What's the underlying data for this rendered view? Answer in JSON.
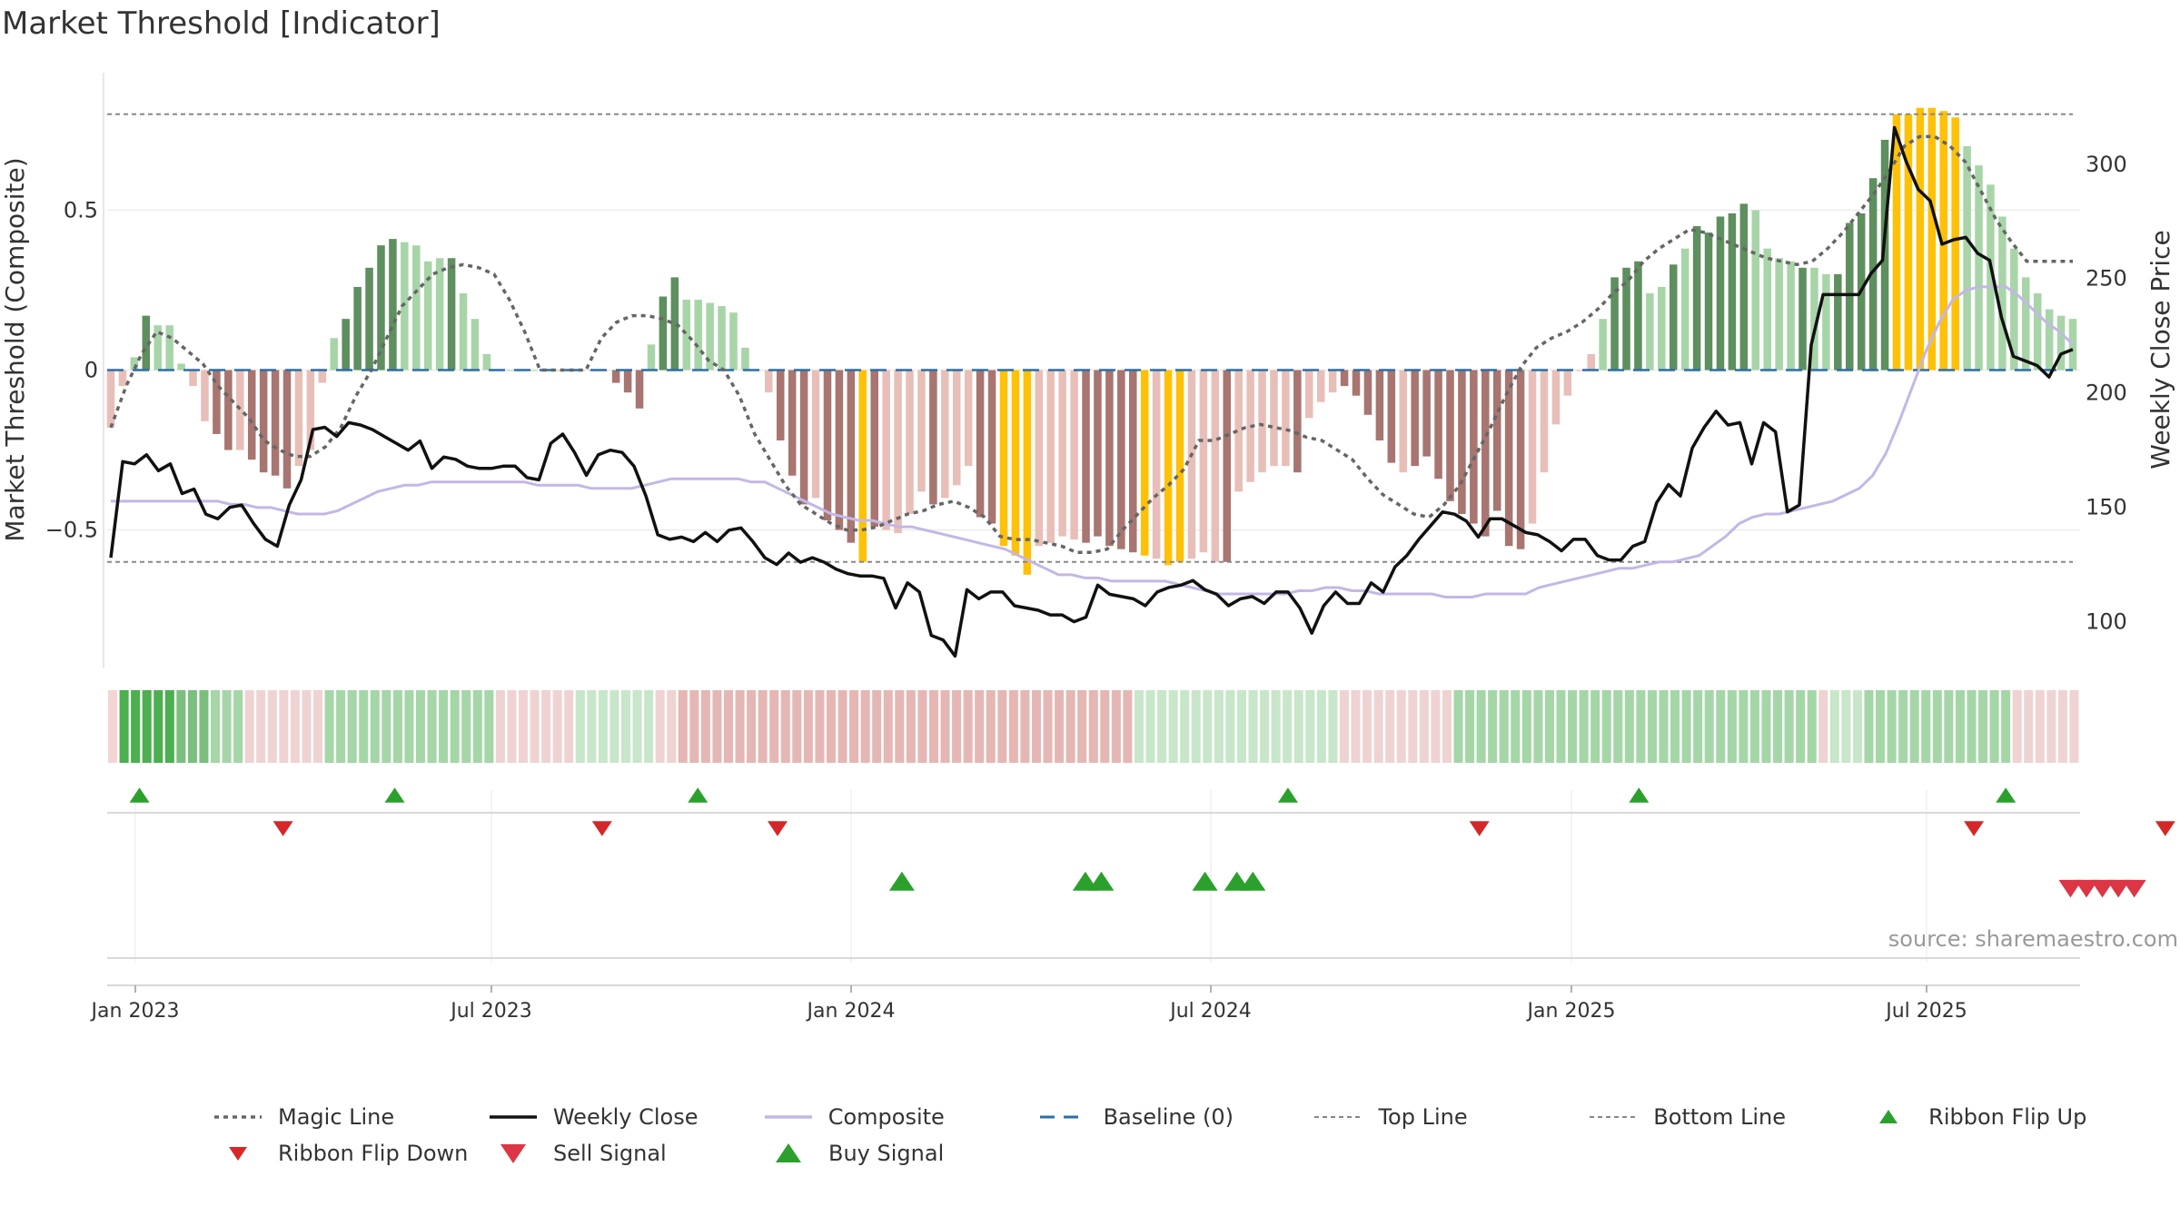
{
  "title": "Market Threshold [Indicator]",
  "source": "source: sharemaestro.com",
  "colors": {
    "dark_green": "#5e8f5e",
    "light_green": "#a8d5a8",
    "dark_red": "#a87570",
    "light_red": "#e8bfb8",
    "gold": "#ffc107",
    "weekly_close": "#111111",
    "composite": "#c3b7e6",
    "magic": "#666666",
    "baseline": "#2c6fa5",
    "threshold": "#888888",
    "flip_up": "#2ca02c",
    "flip_down": "#d62728",
    "buy": "#2ca02c",
    "sell": "#dc3545"
  },
  "chart_data": {
    "type": "bar",
    "title": "Market Threshold [Indicator]",
    "ylabel": "Market Threshold (Composite)",
    "ylabel_right": "Weekly Close Price",
    "ylim": [
      -0.93,
      0.93
    ],
    "ylim_right": [
      80,
      340
    ],
    "y_ticks": [
      0.5,
      0,
      -0.5
    ],
    "y_tick_labels": [
      "0.5",
      "0",
      "−0.5"
    ],
    "y_ticks_right": [
      100,
      150,
      200,
      250,
      300
    ],
    "y_tick_labels_right": [
      "100",
      "150",
      "200",
      "250",
      "300"
    ],
    "x_ticks": [
      "Jan 2023",
      "Jul 2023",
      "Jan 2024",
      "Jul 2024",
      "Jan 2025",
      "Jul 2025"
    ],
    "top_line": 0.8,
    "bottom_line": -0.6,
    "grid": true,
    "legend_position": "bottom",
    "bar_values": [
      -0.18,
      -0.05,
      0.04,
      0.17,
      0.14,
      0.14,
      0.02,
      -0.05,
      -0.16,
      -0.2,
      -0.25,
      -0.25,
      -0.28,
      -0.32,
      -0.33,
      -0.37,
      -0.3,
      -0.25,
      -0.04,
      0.1,
      0.16,
      0.26,
      0.32,
      0.39,
      0.41,
      0.4,
      0.39,
      0.34,
      0.35,
      0.35,
      0.24,
      0.16,
      0.05,
      0.0,
      0.0,
      0.0,
      0.0,
      0.0,
      0.0,
      0.0,
      0.0,
      0.0,
      0.0,
      -0.04,
      -0.07,
      -0.12,
      0.08,
      0.23,
      0.29,
      0.22,
      0.22,
      0.21,
      0.2,
      0.18,
      0.07,
      0.0,
      -0.07,
      -0.22,
      -0.33,
      -0.42,
      -0.4,
      -0.47,
      -0.5,
      -0.54,
      -0.6,
      -0.49,
      -0.5,
      -0.51,
      -0.45,
      -0.38,
      -0.42,
      -0.4,
      -0.36,
      -0.3,
      -0.46,
      -0.48,
      -0.55,
      -0.58,
      -0.64,
      -0.55,
      -0.54,
      -0.52,
      -0.53,
      -0.54,
      -0.52,
      -0.55,
      -0.56,
      -0.57,
      -0.58,
      -0.59,
      -0.61,
      -0.6,
      -0.59,
      -0.57,
      -0.6,
      -0.6,
      -0.38,
      -0.35,
      -0.32,
      -0.3,
      -0.3,
      -0.32,
      -0.15,
      -0.1,
      -0.07,
      -0.05,
      -0.08,
      -0.14,
      -0.22,
      -0.29,
      -0.32,
      -0.3,
      -0.27,
      -0.34,
      -0.41,
      -0.45,
      -0.48,
      -0.52,
      -0.44,
      -0.55,
      -0.56,
      -0.48,
      -0.32,
      -0.17,
      -0.08,
      0.0,
      0.05,
      0.16,
      0.29,
      0.32,
      0.34,
      0.24,
      0.26,
      0.33,
      0.38,
      0.45,
      0.43,
      0.48,
      0.49,
      0.52,
      0.5,
      0.38,
      0.35,
      0.34,
      0.32,
      0.32,
      0.3,
      0.3,
      0.46,
      0.49,
      0.6,
      0.72,
      0.8,
      0.8,
      0.82,
      0.82,
      0.81,
      0.79,
      0.7,
      0.64,
      0.58,
      0.48,
      0.38,
      0.29,
      0.24,
      0.19,
      0.17,
      0.16
    ],
    "bar_colors": [
      "lr",
      "lr",
      "lg",
      "dg",
      "lg",
      "lg",
      "lg",
      "lr",
      "lr",
      "dr",
      "dr",
      "lr",
      "dr",
      "dr",
      "dr",
      "dr",
      "lr",
      "lr",
      "lr",
      "lg",
      "dg",
      "dg",
      "dg",
      "dg",
      "dg",
      "lg",
      "lg",
      "lg",
      "lg",
      "dg",
      "lg",
      "lg",
      "lg",
      "lg",
      "lg",
      "lg",
      "lg",
      "lg",
      "lg",
      "lg",
      "lg",
      "lg",
      "lr",
      "dr",
      "dr",
      "dr",
      "lg",
      "dg",
      "dg",
      "lg",
      "lg",
      "lg",
      "lg",
      "lg",
      "lg",
      "lr",
      "lr",
      "dr",
      "dr",
      "dr",
      "lr",
      "dr",
      "dr",
      "dr",
      "gold",
      "dr",
      "lr",
      "lr",
      "lr",
      "lr",
      "dr",
      "lr",
      "lr",
      "lr",
      "dr",
      "dr",
      "gold",
      "gold",
      "gold",
      "lr",
      "lr",
      "lr",
      "lr",
      "dr",
      "dr",
      "dr",
      "dr",
      "dr",
      "gold",
      "lr",
      "gold",
      "gold",
      "lr",
      "lr",
      "lr",
      "dr",
      "lr",
      "lr",
      "lr",
      "lr",
      "lr",
      "dr",
      "lr",
      "lr",
      "lr",
      "dr",
      "dr",
      "dr",
      "dr",
      "dr",
      "lr",
      "dr",
      "dr",
      "dr",
      "dr",
      "dr",
      "dr",
      "dr",
      "dr",
      "dr",
      "dr",
      "lr",
      "lr",
      "lr",
      "lr",
      "lr",
      "lr",
      "lg",
      "dg",
      "dg",
      "dg",
      "lg",
      "lg",
      "dg",
      "lg",
      "dg",
      "dg",
      "dg",
      "dg",
      "dg",
      "lg",
      "lg",
      "lg",
      "lg",
      "dg",
      "lg",
      "lg",
      "dg",
      "dg",
      "dg",
      "dg",
      "dg",
      "gold",
      "gold",
      "gold",
      "gold",
      "gold",
      "gold",
      "lg",
      "lg",
      "lg",
      "lg",
      "lg",
      "lg",
      "lg",
      "lg",
      "lg",
      "lg"
    ],
    "weekly_close": [
      128,
      170,
      169,
      173,
      166,
      169,
      156,
      158,
      147,
      145,
      150,
      151,
      143,
      136,
      133,
      151,
      162,
      184,
      185,
      181,
      187,
      186,
      184,
      181,
      178,
      175,
      179,
      167,
      172,
      171,
      168,
      167,
      167,
      168,
      168,
      163,
      162,
      178,
      182,
      174,
      164,
      173,
      175,
      174,
      168,
      155,
      138,
      136,
      137,
      135,
      139,
      135,
      140,
      141,
      135,
      128,
      125,
      130,
      126,
      128,
      126,
      123,
      121,
      120,
      120,
      119,
      106,
      117,
      113,
      94,
      92,
      85,
      114,
      110,
      113,
      113,
      107,
      106,
      105,
      103,
      103,
      100,
      102,
      116,
      112,
      111,
      110,
      107,
      113,
      115,
      116,
      118,
      114,
      112,
      107,
      110,
      111,
      108,
      113,
      113,
      106,
      95,
      107,
      113,
      108,
      108,
      117,
      113,
      124,
      129,
      136,
      142,
      148,
      147,
      144,
      137,
      145,
      145,
      142,
      139,
      138,
      135,
      131,
      136,
      136,
      129,
      127,
      127,
      133,
      135,
      152,
      160,
      155,
      176,
      185,
      192,
      186,
      187,
      169,
      187,
      183,
      148,
      151,
      221,
      243,
      243,
      243,
      243,
      252,
      258,
      316,
      301,
      289,
      284,
      265,
      267,
      268,
      261,
      258,
      233,
      216,
      214,
      212,
      207,
      217,
      219
    ],
    "composite_line": [
      -0.41,
      -0.41,
      -0.41,
      -0.41,
      -0.41,
      -0.41,
      -0.41,
      -0.41,
      -0.41,
      -0.42,
      -0.42,
      -0.43,
      -0.43,
      -0.44,
      -0.45,
      -0.45,
      -0.45,
      -0.44,
      -0.42,
      -0.4,
      -0.38,
      -0.37,
      -0.36,
      -0.36,
      -0.35,
      -0.35,
      -0.35,
      -0.35,
      -0.35,
      -0.35,
      -0.35,
      -0.35,
      -0.36,
      -0.36,
      -0.36,
      -0.36,
      -0.37,
      -0.37,
      -0.37,
      -0.37,
      -0.36,
      -0.35,
      -0.34,
      -0.34,
      -0.34,
      -0.34,
      -0.34,
      -0.34,
      -0.35,
      -0.35,
      -0.37,
      -0.39,
      -0.41,
      -0.43,
      -0.45,
      -0.46,
      -0.47,
      -0.47,
      -0.48,
      -0.49,
      -0.49,
      -0.5,
      -0.51,
      -0.52,
      -0.53,
      -0.54,
      -0.55,
      -0.56,
      -0.58,
      -0.6,
      -0.62,
      -0.64,
      -0.64,
      -0.65,
      -0.65,
      -0.66,
      -0.66,
      -0.66,
      -0.66,
      -0.66,
      -0.67,
      -0.68,
      -0.69,
      -0.7,
      -0.7,
      -0.7,
      -0.7,
      -0.7,
      -0.7,
      -0.69,
      -0.69,
      -0.68,
      -0.68,
      -0.69,
      -0.69,
      -0.7,
      -0.7,
      -0.7,
      -0.7,
      -0.7,
      -0.71,
      -0.71,
      -0.71,
      -0.7,
      -0.7,
      -0.7,
      -0.7,
      -0.68,
      -0.67,
      -0.66,
      -0.65,
      -0.64,
      -0.63,
      -0.62,
      -0.62,
      -0.61,
      -0.6,
      -0.6,
      -0.59,
      -0.58,
      -0.55,
      -0.52,
      -0.48,
      -0.46,
      -0.45,
      -0.45,
      -0.44,
      -0.43,
      -0.42,
      -0.41,
      -0.39,
      -0.37,
      -0.33,
      -0.26,
      -0.16,
      -0.05,
      0.06,
      0.15,
      0.22,
      0.25,
      0.26,
      0.26,
      0.26,
      0.23,
      0.19,
      0.15,
      0.12,
      0.08
    ],
    "magic_line": [
      -0.18,
      -0.05,
      0.05,
      0.12,
      0.1,
      0.06,
      0.02,
      -0.05,
      -0.1,
      -0.15,
      -0.22,
      -0.25,
      -0.27,
      -0.27,
      -0.24,
      -0.18,
      -0.08,
      0.0,
      0.1,
      0.2,
      0.25,
      0.3,
      0.32,
      0.33,
      0.32,
      0.3,
      0.22,
      0.12,
      0.0,
      0.0,
      0.0,
      0.0,
      0.1,
      0.15,
      0.17,
      0.17,
      0.16,
      0.14,
      0.09,
      0.03,
      0.0,
      -0.08,
      -0.2,
      -0.28,
      -0.36,
      -0.42,
      -0.45,
      -0.48,
      -0.5,
      -0.5,
      -0.49,
      -0.47,
      -0.45,
      -0.44,
      -0.42,
      -0.41,
      -0.43,
      -0.46,
      -0.52,
      -0.53,
      -0.53,
      -0.54,
      -0.55,
      -0.57,
      -0.57,
      -0.56,
      -0.5,
      -0.45,
      -0.4,
      -0.36,
      -0.31,
      -0.22,
      -0.22,
      -0.2,
      -0.18,
      -0.17,
      -0.18,
      -0.19,
      -0.21,
      -0.22,
      -0.25,
      -0.28,
      -0.34,
      -0.39,
      -0.42,
      -0.45,
      -0.46,
      -0.42,
      -0.36,
      -0.27,
      -0.18,
      -0.08,
      0.01,
      0.07,
      0.1,
      0.12,
      0.15,
      0.19,
      0.24,
      0.28,
      0.34,
      0.38,
      0.41,
      0.44,
      0.43,
      0.41,
      0.39,
      0.37,
      0.35,
      0.34,
      0.33,
      0.34,
      0.38,
      0.43,
      0.49,
      0.55,
      0.62,
      0.7,
      0.73,
      0.73,
      0.7,
      0.65,
      0.56,
      0.47,
      0.4,
      0.34,
      0.34,
      0.34,
      0.34
    ],
    "ribbon_bars": [
      "lr",
      "dg",
      "dg",
      "dg",
      "dg",
      "dg",
      "mg",
      "mg",
      "mg",
      "lg",
      "lg",
      "lg",
      "vlr",
      "vlr",
      "vlr",
      "vlr",
      "vlr",
      "vlr",
      "vlr",
      "lg",
      "lg",
      "lg",
      "lg",
      "lg",
      "lg",
      "lg",
      "lg",
      "lg",
      "lg",
      "lg",
      "lg",
      "lg",
      "lg",
      "lg",
      "vlr",
      "vlr",
      "vlr",
      "vlr",
      "vlr",
      "vlr",
      "vlr",
      "vlg",
      "vlg",
      "vlg",
      "vlg",
      "vlg",
      "vlg",
      "vlg",
      "vlr",
      "vlr",
      "mr",
      "mr",
      "mr",
      "mr",
      "mr",
      "mr",
      "mr",
      "mr",
      "mr",
      "mr",
      "mr",
      "mr",
      "mr",
      "mr",
      "mr",
      "mr",
      "mr",
      "mr",
      "mr",
      "mr",
      "mr",
      "mr",
      "mr",
      "mr",
      "mr",
      "mr",
      "mr",
      "mr",
      "mr",
      "mr",
      "mr",
      "mr",
      "mr",
      "mr",
      "mr",
      "mr",
      "mr",
      "mr",
      "mr",
      "mr",
      "vlg",
      "vlg",
      "vlg",
      "vlg",
      "vlg",
      "vlg",
      "vlg",
      "vlg",
      "vlg",
      "vlg",
      "vlg",
      "vlg",
      "vlg",
      "vlg",
      "vlg",
      "vlg",
      "vlg",
      "vlg",
      "vlr",
      "vlr",
      "vlr",
      "vlr",
      "vlr",
      "vlr",
      "vlr",
      "vlr",
      "vlr",
      "vlr",
      "lg",
      "lg",
      "lg",
      "lg",
      "lg",
      "lg",
      "lg",
      "lg",
      "lg",
      "lg",
      "lg",
      "lg",
      "lg",
      "lg",
      "lg",
      "lg",
      "lg",
      "lg",
      "lg",
      "lg",
      "lg",
      "lg",
      "lg",
      "lg",
      "lg",
      "lg",
      "lg",
      "lg",
      "lg",
      "lg",
      "lg",
      "lg",
      "vlr",
      "vlg",
      "vlg",
      "vlg",
      "lg",
      "lg",
      "lg",
      "lg",
      "lg",
      "lg",
      "lg",
      "lg",
      "lg",
      "lg",
      "lg",
      "lg",
      "lg",
      "vlr",
      "vlr",
      "vlr",
      "vlr",
      "vlr",
      "vlr"
    ],
    "ribbon_flip_up": [
      1,
      17,
      36,
      73,
      95,
      118
    ],
    "ribbon_flip_down": [
      10,
      30,
      41,
      85,
      116,
      128
    ],
    "buy_signals": [
      48,
      59.5,
      60.5,
      67,
      69,
      70
    ],
    "sell_signals": [
      122,
      123,
      124,
      125,
      126
    ],
    "legend": [
      {
        "label": "Magic Line",
        "style": "dotted",
        "color": "#666666"
      },
      {
        "label": "Weekly Close",
        "style": "solid",
        "color": "#111111"
      },
      {
        "label": "Composite",
        "style": "solid",
        "color": "#c3b7e6"
      },
      {
        "label": "Baseline (0)",
        "style": "dashed",
        "color": "#2c6fa5"
      },
      {
        "label": "Top Line",
        "style": "dotted-thin",
        "color": "#888888"
      },
      {
        "label": "Bottom Line",
        "style": "dotted-thin",
        "color": "#888888"
      },
      {
        "label": "Ribbon Flip Up",
        "style": "tri-up",
        "color": "#2ca02c"
      },
      {
        "label": "Ribbon Flip Down",
        "style": "tri-down",
        "color": "#d62728"
      },
      {
        "label": "Sell Signal",
        "style": "tri-down-big",
        "color": "#dc3545"
      },
      {
        "label": "Buy Signal",
        "style": "tri-up-big",
        "color": "#2ca02c"
      }
    ]
  }
}
